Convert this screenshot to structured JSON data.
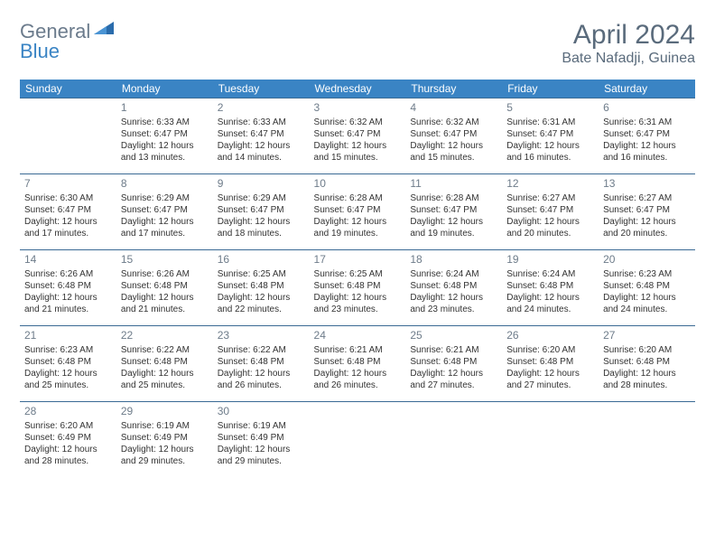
{
  "logo": {
    "general": "General",
    "blue": "Blue"
  },
  "title": {
    "month": "April 2024",
    "location": "Bate Nafadji, Guinea"
  },
  "colors": {
    "header_bg": "#3a84c4",
    "header_text": "#ffffff",
    "cell_border": "#3a6a94",
    "daynum": "#6e7c8a",
    "body_text": "#333333",
    "title_text": "#5a6b7c",
    "logo_general": "#6b7b8c",
    "logo_blue": "#3a84c4"
  },
  "day_headers": [
    "Sunday",
    "Monday",
    "Tuesday",
    "Wednesday",
    "Thursday",
    "Friday",
    "Saturday"
  ],
  "weeks": [
    [
      null,
      {
        "n": "1",
        "sr": "Sunrise: 6:33 AM",
        "ss": "Sunset: 6:47 PM",
        "d1": "Daylight: 12 hours",
        "d2": "and 13 minutes."
      },
      {
        "n": "2",
        "sr": "Sunrise: 6:33 AM",
        "ss": "Sunset: 6:47 PM",
        "d1": "Daylight: 12 hours",
        "d2": "and 14 minutes."
      },
      {
        "n": "3",
        "sr": "Sunrise: 6:32 AM",
        "ss": "Sunset: 6:47 PM",
        "d1": "Daylight: 12 hours",
        "d2": "and 15 minutes."
      },
      {
        "n": "4",
        "sr": "Sunrise: 6:32 AM",
        "ss": "Sunset: 6:47 PM",
        "d1": "Daylight: 12 hours",
        "d2": "and 15 minutes."
      },
      {
        "n": "5",
        "sr": "Sunrise: 6:31 AM",
        "ss": "Sunset: 6:47 PM",
        "d1": "Daylight: 12 hours",
        "d2": "and 16 minutes."
      },
      {
        "n": "6",
        "sr": "Sunrise: 6:31 AM",
        "ss": "Sunset: 6:47 PM",
        "d1": "Daylight: 12 hours",
        "d2": "and 16 minutes."
      }
    ],
    [
      {
        "n": "7",
        "sr": "Sunrise: 6:30 AM",
        "ss": "Sunset: 6:47 PM",
        "d1": "Daylight: 12 hours",
        "d2": "and 17 minutes."
      },
      {
        "n": "8",
        "sr": "Sunrise: 6:29 AM",
        "ss": "Sunset: 6:47 PM",
        "d1": "Daylight: 12 hours",
        "d2": "and 17 minutes."
      },
      {
        "n": "9",
        "sr": "Sunrise: 6:29 AM",
        "ss": "Sunset: 6:47 PM",
        "d1": "Daylight: 12 hours",
        "d2": "and 18 minutes."
      },
      {
        "n": "10",
        "sr": "Sunrise: 6:28 AM",
        "ss": "Sunset: 6:47 PM",
        "d1": "Daylight: 12 hours",
        "d2": "and 19 minutes."
      },
      {
        "n": "11",
        "sr": "Sunrise: 6:28 AM",
        "ss": "Sunset: 6:47 PM",
        "d1": "Daylight: 12 hours",
        "d2": "and 19 minutes."
      },
      {
        "n": "12",
        "sr": "Sunrise: 6:27 AM",
        "ss": "Sunset: 6:47 PM",
        "d1": "Daylight: 12 hours",
        "d2": "and 20 minutes."
      },
      {
        "n": "13",
        "sr": "Sunrise: 6:27 AM",
        "ss": "Sunset: 6:47 PM",
        "d1": "Daylight: 12 hours",
        "d2": "and 20 minutes."
      }
    ],
    [
      {
        "n": "14",
        "sr": "Sunrise: 6:26 AM",
        "ss": "Sunset: 6:48 PM",
        "d1": "Daylight: 12 hours",
        "d2": "and 21 minutes."
      },
      {
        "n": "15",
        "sr": "Sunrise: 6:26 AM",
        "ss": "Sunset: 6:48 PM",
        "d1": "Daylight: 12 hours",
        "d2": "and 21 minutes."
      },
      {
        "n": "16",
        "sr": "Sunrise: 6:25 AM",
        "ss": "Sunset: 6:48 PM",
        "d1": "Daylight: 12 hours",
        "d2": "and 22 minutes."
      },
      {
        "n": "17",
        "sr": "Sunrise: 6:25 AM",
        "ss": "Sunset: 6:48 PM",
        "d1": "Daylight: 12 hours",
        "d2": "and 23 minutes."
      },
      {
        "n": "18",
        "sr": "Sunrise: 6:24 AM",
        "ss": "Sunset: 6:48 PM",
        "d1": "Daylight: 12 hours",
        "d2": "and 23 minutes."
      },
      {
        "n": "19",
        "sr": "Sunrise: 6:24 AM",
        "ss": "Sunset: 6:48 PM",
        "d1": "Daylight: 12 hours",
        "d2": "and 24 minutes."
      },
      {
        "n": "20",
        "sr": "Sunrise: 6:23 AM",
        "ss": "Sunset: 6:48 PM",
        "d1": "Daylight: 12 hours",
        "d2": "and 24 minutes."
      }
    ],
    [
      {
        "n": "21",
        "sr": "Sunrise: 6:23 AM",
        "ss": "Sunset: 6:48 PM",
        "d1": "Daylight: 12 hours",
        "d2": "and 25 minutes."
      },
      {
        "n": "22",
        "sr": "Sunrise: 6:22 AM",
        "ss": "Sunset: 6:48 PM",
        "d1": "Daylight: 12 hours",
        "d2": "and 25 minutes."
      },
      {
        "n": "23",
        "sr": "Sunrise: 6:22 AM",
        "ss": "Sunset: 6:48 PM",
        "d1": "Daylight: 12 hours",
        "d2": "and 26 minutes."
      },
      {
        "n": "24",
        "sr": "Sunrise: 6:21 AM",
        "ss": "Sunset: 6:48 PM",
        "d1": "Daylight: 12 hours",
        "d2": "and 26 minutes."
      },
      {
        "n": "25",
        "sr": "Sunrise: 6:21 AM",
        "ss": "Sunset: 6:48 PM",
        "d1": "Daylight: 12 hours",
        "d2": "and 27 minutes."
      },
      {
        "n": "26",
        "sr": "Sunrise: 6:20 AM",
        "ss": "Sunset: 6:48 PM",
        "d1": "Daylight: 12 hours",
        "d2": "and 27 minutes."
      },
      {
        "n": "27",
        "sr": "Sunrise: 6:20 AM",
        "ss": "Sunset: 6:48 PM",
        "d1": "Daylight: 12 hours",
        "d2": "and 28 minutes."
      }
    ],
    [
      {
        "n": "28",
        "sr": "Sunrise: 6:20 AM",
        "ss": "Sunset: 6:49 PM",
        "d1": "Daylight: 12 hours",
        "d2": "and 28 minutes."
      },
      {
        "n": "29",
        "sr": "Sunrise: 6:19 AM",
        "ss": "Sunset: 6:49 PM",
        "d1": "Daylight: 12 hours",
        "d2": "and 29 minutes."
      },
      {
        "n": "30",
        "sr": "Sunrise: 6:19 AM",
        "ss": "Sunset: 6:49 PM",
        "d1": "Daylight: 12 hours",
        "d2": "and 29 minutes."
      },
      null,
      null,
      null,
      null
    ]
  ]
}
